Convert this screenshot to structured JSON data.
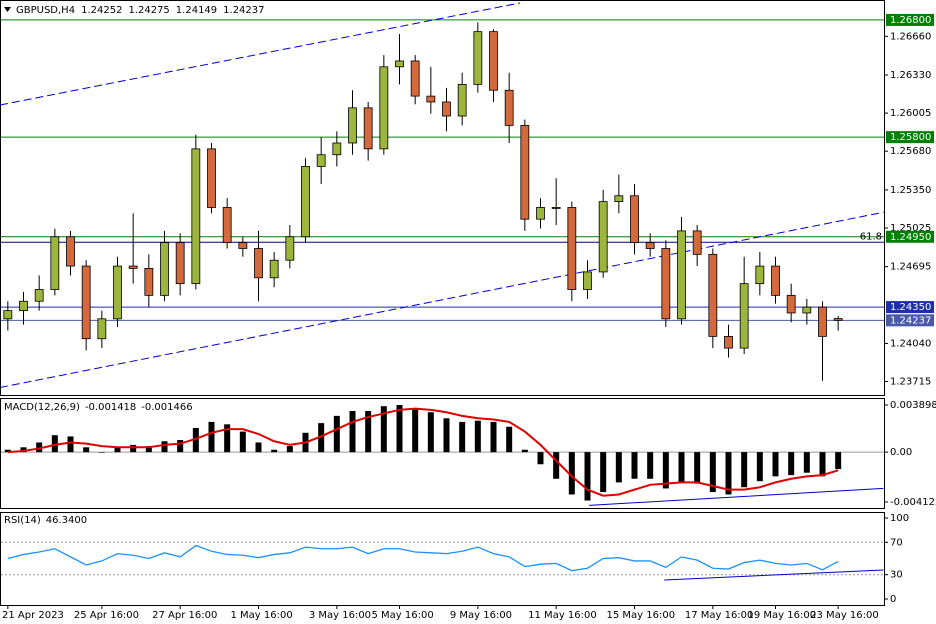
{
  "chart_data": [
    {
      "type": "candlestick",
      "symbol": "GBPUSD,H4",
      "readout": [
        1.24252,
        1.24275,
        1.24149,
        1.24237
      ],
      "up_color": "#9cb53c",
      "down_color": "#d4693d",
      "ylim": [
        1.236,
        1.2697
      ],
      "yticks": [
        {
          "value": 1.2666,
          "label": "1.26660"
        },
        {
          "value": 1.2633,
          "label": "1.26330"
        },
        1.26005,
        {
          "value": 1.2568,
          "label": "1.25680"
        },
        {
          "value": 1.2535,
          "label": "1.25350"
        },
        1.25025,
        1.24695,
        {
          "value": 1.2404,
          "label": "1.24040"
        },
        1.23715
      ],
      "levels": [
        {
          "value": 1.268,
          "label": "1.26800",
          "color": "#008000"
        },
        {
          "value": 1.258,
          "label": "1.25800",
          "color": "#008000"
        },
        {
          "value": 1.2495,
          "label": "1.24950",
          "color": "#008000"
        },
        {
          "value": 1.24903,
          "name": "61.8",
          "color": "#000080"
        },
        {
          "value": 1.2435,
          "label": "1.24350",
          "color": "#1f2fa8"
        },
        {
          "value": 1.24237,
          "label": "1.24237",
          "color": "#4a5aa8"
        }
      ],
      "trendlines": [
        {
          "x": [
            -0.5,
            32.7
          ],
          "y": [
            1.26074,
            1.26945
          ],
          "color": "#0000cc"
        },
        {
          "x": [
            -0.5,
            55.9
          ],
          "y": [
            1.23664,
            1.25159
          ],
          "color": "#0000cc"
        }
      ],
      "categories": [
        "21 Apr 2023",
        null,
        null,
        null,
        null,
        null,
        "25 Apr 16:00",
        null,
        null,
        null,
        null,
        "27 Apr 16:00",
        null,
        null,
        null,
        null,
        "1 May 16:00",
        null,
        null,
        null,
        null,
        "3 May 16:00",
        null,
        null,
        null,
        "5 May 16:00",
        null,
        null,
        null,
        null,
        "9 May 16:00",
        null,
        null,
        null,
        null,
        "11 May 16:00",
        null,
        null,
        null,
        null,
        "15 May 16:00",
        null,
        null,
        null,
        null,
        "17 May 16:00",
        null,
        null,
        null,
        "19 May 16:00",
        null,
        null,
        null,
        "23 May 16:00"
      ],
      "candles": [
        [
          1.2425,
          1.244,
          1.2415,
          1.2432
        ],
        [
          1.2432,
          1.2448,
          1.242,
          1.244
        ],
        [
          1.244,
          1.2462,
          1.2432,
          1.245
        ],
        [
          1.245,
          1.2502,
          1.2445,
          1.2495
        ],
        [
          1.2495,
          1.25,
          1.2462,
          1.247
        ],
        [
          1.247,
          1.2475,
          1.2398,
          1.2408
        ],
        [
          1.2408,
          1.2432,
          1.24,
          1.2425
        ],
        [
          1.2425,
          1.2478,
          1.2418,
          1.247
        ],
        [
          1.247,
          1.2515,
          1.2455,
          1.2468
        ],
        [
          1.2468,
          1.248,
          1.2435,
          1.2445
        ],
        [
          1.2445,
          1.25,
          1.244,
          1.249
        ],
        [
          1.249,
          1.2498,
          1.2445,
          1.2455
        ],
        [
          1.2455,
          1.2582,
          1.245,
          1.257
        ],
        [
          1.257,
          1.2575,
          1.2515,
          1.252
        ],
        [
          1.252,
          1.2528,
          1.2485,
          1.249
        ],
        [
          1.249,
          1.2495,
          1.2478,
          1.2485
        ],
        [
          1.2485,
          1.25,
          1.244,
          1.246
        ],
        [
          1.246,
          1.2482,
          1.2452,
          1.2475
        ],
        [
          1.2475,
          1.2505,
          1.2468,
          1.2495
        ],
        [
          1.2495,
          1.2562,
          1.249,
          1.2555
        ],
        [
          1.2555,
          1.258,
          1.254,
          1.2565
        ],
        [
          1.2565,
          1.2585,
          1.2555,
          1.2575
        ],
        [
          1.2575,
          1.262,
          1.2565,
          1.2605
        ],
        [
          1.2605,
          1.261,
          1.256,
          1.257
        ],
        [
          1.257,
          1.265,
          1.2565,
          1.264
        ],
        [
          1.264,
          1.2668,
          1.2625,
          1.2645
        ],
        [
          1.2645,
          1.265,
          1.2608,
          1.2615
        ],
        [
          1.2615,
          1.264,
          1.26,
          1.261
        ],
        [
          1.261,
          1.2622,
          1.2585,
          1.2598
        ],
        [
          1.2598,
          1.2635,
          1.259,
          1.2625
        ],
        [
          1.2625,
          1.2678,
          1.2618,
          1.267
        ],
        [
          1.267,
          1.2672,
          1.261,
          1.262
        ],
        [
          1.262,
          1.2635,
          1.2575,
          1.259
        ],
        [
          1.259,
          1.2595,
          1.25,
          1.251
        ],
        [
          1.251,
          1.2528,
          1.2502,
          1.252
        ],
        [
          1.252,
          1.2545,
          1.2505,
          1.252
        ],
        [
          1.252,
          1.2525,
          1.244,
          1.245
        ],
        [
          1.245,
          1.2475,
          1.2442,
          1.2465
        ],
        [
          1.2465,
          1.2535,
          1.246,
          1.2525
        ],
        [
          1.2525,
          1.2548,
          1.2515,
          1.253
        ],
        [
          1.253,
          1.254,
          1.248,
          1.249
        ],
        [
          1.249,
          1.2498,
          1.2478,
          1.2485
        ],
        [
          1.2485,
          1.2492,
          1.2418,
          1.2425
        ],
        [
          1.2425,
          1.2512,
          1.242,
          1.25
        ],
        [
          1.25,
          1.2505,
          1.247,
          1.248
        ],
        [
          1.248,
          1.2485,
          1.24,
          1.241
        ],
        [
          1.241,
          1.242,
          1.2392,
          1.24
        ],
        [
          1.24,
          1.2478,
          1.2395,
          1.2455
        ],
        [
          1.2455,
          1.2482,
          1.2445,
          1.247
        ],
        [
          1.247,
          1.2478,
          1.2438,
          1.2445
        ],
        [
          1.2445,
          1.2455,
          1.2422,
          1.243
        ],
        [
          1.243,
          1.2442,
          1.242,
          1.2435
        ],
        [
          1.2435,
          1.244,
          1.2372,
          1.241
        ],
        [
          1.24252,
          1.24275,
          1.24149,
          1.24237
        ]
      ]
    },
    {
      "type": "macd",
      "title": "MACD(12,26,9)",
      "readout": [
        -0.001418,
        -0.001466
      ],
      "ylim": [
        -0.004618,
        0.004477
      ],
      "yticks": [
        0.003898,
        {
          "value": 0,
          "label": "0.00"
        },
        -0.004122
      ],
      "histogram_color": "#000000",
      "signal_color": "#e00000",
      "histogram": [
        0.0002,
        0.0004,
        0.0008,
        0.0014,
        0.0013,
        0.0004,
        0.0,
        0.0004,
        0.0006,
        0.0005,
        0.0009,
        0.001,
        0.002,
        0.0025,
        0.0023,
        0.0017,
        0.0008,
        0.0002,
        0.0005,
        0.0016,
        0.0024,
        0.003,
        0.0034,
        0.0034,
        0.0038,
        0.0039,
        0.0036,
        0.0033,
        0.0028,
        0.0025,
        0.0026,
        0.0025,
        0.0021,
        0.0002,
        -0.001,
        -0.0022,
        -0.0035,
        -0.004,
        -0.0033,
        -0.0025,
        -0.0022,
        -0.0022,
        -0.003,
        -0.0025,
        -0.0026,
        -0.0033,
        -0.0035,
        -0.0029,
        -0.0024,
        -0.002,
        -0.0019,
        -0.0017,
        -0.002,
        -0.0014
      ],
      "signal": [
        0.0,
        0.0001,
        0.0003,
        0.0006,
        0.0008,
        0.0007,
        0.0005,
        0.0004,
        0.0004,
        0.0004,
        0.0006,
        0.0007,
        0.0011,
        0.0016,
        0.0019,
        0.0019,
        0.0015,
        0.0009,
        0.0006,
        0.0008,
        0.0013,
        0.0019,
        0.0025,
        0.0029,
        0.0032,
        0.0035,
        0.0036,
        0.0035,
        0.0033,
        0.003,
        0.0028,
        0.0027,
        0.0025,
        0.0017,
        0.0006,
        -0.0007,
        -0.002,
        -0.0031,
        -0.0036,
        -0.0035,
        -0.0031,
        -0.0027,
        -0.0026,
        -0.0025,
        -0.0025,
        -0.0028,
        -0.0031,
        -0.0031,
        -0.0029,
        -0.0025,
        -0.0022,
        -0.002,
        -0.0019,
        -0.0015
      ],
      "trendlines": [
        {
          "x": [
            37.1,
            55.9
          ],
          "y": [
            -0.0044,
            -0.003
          ],
          "color": "#0000cc"
        }
      ]
    },
    {
      "type": "line",
      "title": "RSI(14)",
      "readout": {
        "value": 46.34,
        "label": "46.3400"
      },
      "ylim": [
        -7.4,
        107.4
      ],
      "yticks": [
        100,
        70,
        30,
        0
      ],
      "dotted_levels": [
        70,
        30
      ],
      "color": "#1e90ff",
      "values": [
        50,
        55,
        58,
        62,
        52,
        42,
        47,
        56,
        54,
        50,
        57,
        52,
        66,
        59,
        55,
        54,
        51,
        55,
        57,
        64,
        62,
        62,
        64,
        56,
        62,
        62,
        58,
        57,
        56,
        59,
        64,
        56,
        52,
        40,
        43,
        44,
        35,
        38,
        50,
        51,
        47,
        47,
        39,
        52,
        48,
        38,
        37,
        45,
        48,
        44,
        42,
        44,
        36,
        46.34
      ],
      "trendlines": [
        {
          "x": [
            41.9,
            55.9
          ],
          "y": [
            23.5,
            35.8
          ],
          "color": "#0000cc"
        }
      ]
    }
  ]
}
